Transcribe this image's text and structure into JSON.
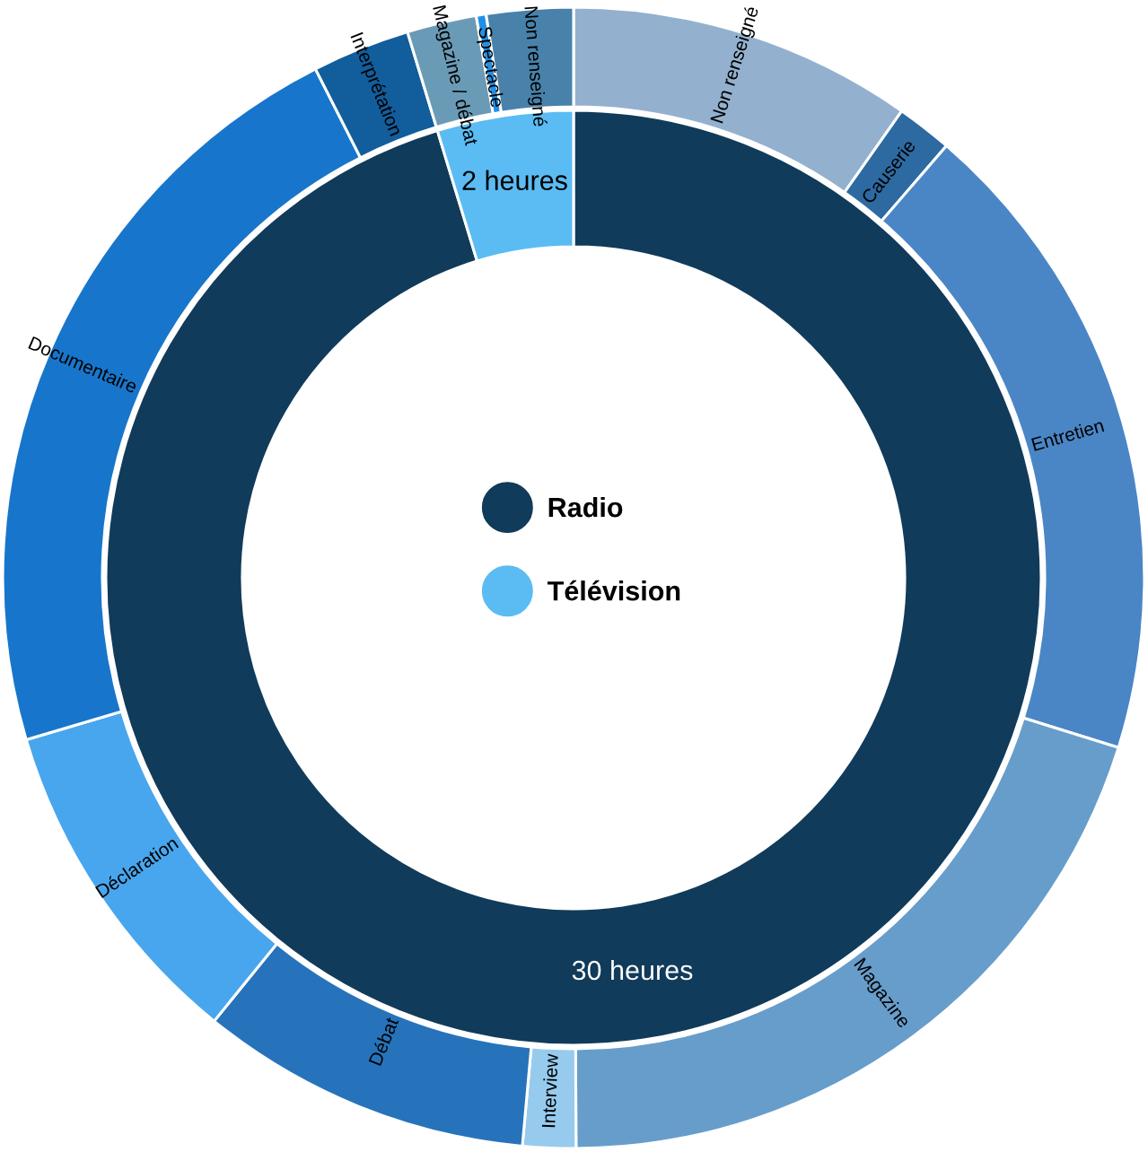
{
  "chart_data": {
    "type": "donut",
    "legend": "center",
    "categories": [
      "Radio",
      "Télévision",
      null,
      null,
      null,
      null,
      null,
      null,
      null,
      null,
      null,
      null
    ],
    "series": [
      {
        "values": [
          30.4,
          1.5,
          null,
          null,
          null,
          null,
          null,
          null,
          null,
          null,
          null,
          null
        ],
        "colors": [
          "#113b5a",
          "#5bbcf3",
          null,
          null,
          null,
          null,
          null,
          null,
          null,
          null,
          null,
          null
        ],
        "value_labels": [
          "30 heures",
          "2 heures",
          null,
          null,
          null,
          null,
          null,
          null,
          null,
          null,
          null,
          null
        ]
      },
      {
        "values": [
          9.75,
          1.58,
          18.48,
          20.12,
          1.5,
          9.41,
          9.58,
          22.11,
          2.77,
          1.97,
          0.28,
          2.45
        ],
        "colors": [
          "#93b1cf",
          "#2d6aa2",
          "#4a86c6",
          "#679dcb",
          "#96cbed",
          "#2673bb",
          "#48a6ee",
          "#1776cb",
          "#125d9c",
          "#6a9bb6",
          "#2090e6",
          "#4882aa"
        ],
        "value_labels": [
          "Non renseigné",
          "Causerie",
          "Entretien",
          "Magazine",
          "Interview",
          "Débat",
          "Déclaration",
          "Documentaire",
          "Interprétation",
          "Magazine / débat",
          "Spectacle",
          "Non renseigné"
        ]
      }
    ]
  }
}
